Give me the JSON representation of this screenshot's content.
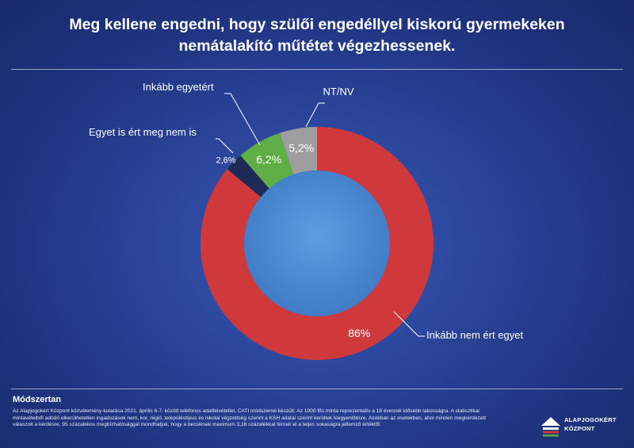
{
  "header": {
    "title_line1": "Meg kellene engedni, hogy szülői engedéllyel kiskorú gyermekeken",
    "title_line2": "nemátalakító műtétet végezhessenek."
  },
  "chart_data": {
    "type": "pie",
    "style": "donut",
    "title": "Meg kellene engedni, hogy szülői engedéllyel kiskorú gyermekeken nemátalakító műtétet végezhessenek.",
    "slices": [
      {
        "label": "Inkább nem ért egyet",
        "value": 86,
        "value_label": "86%",
        "color": "#d0393b"
      },
      {
        "label": "Egyet is ért meg nem is",
        "value": 2.6,
        "value_label": "2,6%",
        "color": "#1c2a55"
      },
      {
        "label": "Inkább egyetért",
        "value": 6.2,
        "value_label": "6,2%",
        "color": "#5fad45"
      },
      {
        "label": "NT/NV",
        "value": 5.2,
        "value_label": "5,2%",
        "color": "#9e9e9e"
      }
    ],
    "start": "12 o'clock",
    "direction": "clockwise",
    "legend": "none"
  },
  "footer": {
    "method_title": "Módszertan",
    "method_text": "Az Alapjogokért Központ közvélemény-kutatása 2021. április 6-7. között telefonos adatfelvétellel, CATI módszerrel készült. Az 1000 fős minta reprezentatív a 18 évesnél idősebb lakosságra. A statisztikai mintavételből adódó elkerülhetetlen ingadozások nem, kor, régió, településtípus és iskolai végzettség szerint a KSH adatai szerint kerültek kiegyenlítésre. Azokban az esetekben, ahol minden megkérdezett válaszolt a kérdésre, 95 százalékos megbízhatósággal mondhatjuk, hogy a becslések maximum 3,16 százalékkal térnek el a teljes sokaságra jellemző értéktől.",
    "logo_line1": "ALAPJOGOKÉRT",
    "logo_line2": "KÖZPONT"
  },
  "colors": {
    "background": "#2b469c",
    "donut_hole": "#4d8bd1",
    "text": "#ffffff"
  }
}
